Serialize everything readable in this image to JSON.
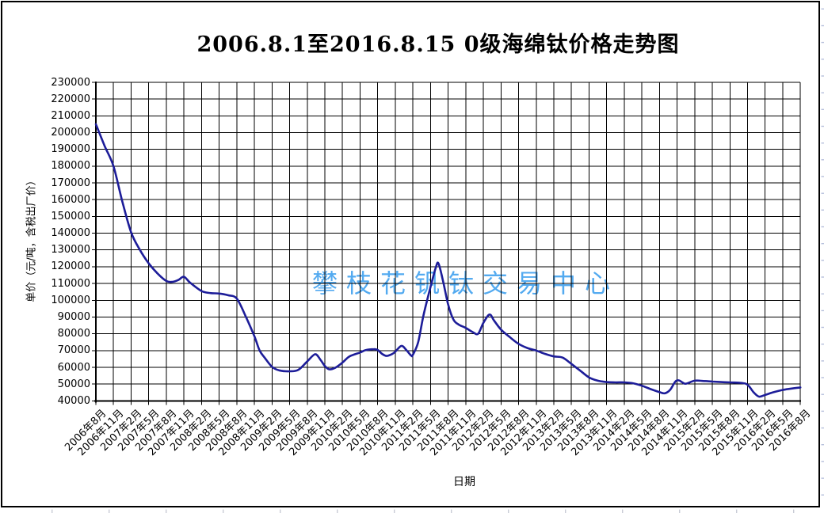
{
  "chart_data": {
    "type": "line",
    "title": "2006.8.1至2016.8.15  0级海绵钛价格走势图",
    "xlabel": "日期",
    "ylabel": "单价（元/吨，含税出厂价）",
    "watermark": "攀枝花钒钛交易中心",
    "ylim": [
      40000,
      230000
    ],
    "ytick_interval": 10000,
    "grid": true,
    "legend": false,
    "y_ticks": [
      230000,
      220000,
      210000,
      200000,
      190000,
      180000,
      170000,
      160000,
      150000,
      140000,
      130000,
      120000,
      110000,
      100000,
      90000,
      80000,
      70000,
      60000,
      50000,
      40000
    ],
    "categories": [
      "2006年8月",
      "2006年11月",
      "2007年2月",
      "2007年5月",
      "2007年8月",
      "2007年11月",
      "2008年2月",
      "2008年5月",
      "2008年8月",
      "2008年11月",
      "2009年2月",
      "2009年5月",
      "2009年8月",
      "2009年11月",
      "2010年2月",
      "2010年5月",
      "2010年8月",
      "2010年11月",
      "2011年2月",
      "2011年5月",
      "2011年8月",
      "2011年11月",
      "2012年2月",
      "2012年5月",
      "2012年8月",
      "2012年11月",
      "2013年2月",
      "2013年5月",
      "2013年8月",
      "2013年11月",
      "2014年2月",
      "2014年5月",
      "2014年8月",
      "2014年11月",
      "2015年2月",
      "2015年5月",
      "2015年8月",
      "2015年11月",
      "2016年2月",
      "2016年5月",
      "2016年8月"
    ],
    "points_note": "points are [tick_index, price_yuan_per_ton]; tick_index 0 = 2006年8月, 1 tick = 3 months",
    "series": [
      {
        "points": [
          [
            0,
            205000
          ],
          [
            0.5,
            192000
          ],
          [
            1,
            180000
          ],
          [
            1.5,
            159000
          ],
          [
            2,
            140500
          ],
          [
            2.5,
            130000
          ],
          [
            3,
            122000
          ],
          [
            3.5,
            116000
          ],
          [
            4,
            111500
          ],
          [
            4.35,
            111000
          ],
          [
            4.7,
            112200
          ],
          [
            5,
            114000
          ],
          [
            5.35,
            110500
          ],
          [
            6,
            105500
          ],
          [
            6.5,
            104300
          ],
          [
            7,
            104000
          ],
          [
            7.5,
            103000
          ],
          [
            8,
            101000
          ],
          [
            8.5,
            90500
          ],
          [
            9,
            78500
          ],
          [
            9.3,
            70000
          ],
          [
            9.6,
            65500
          ],
          [
            10,
            60300
          ],
          [
            10.4,
            58200
          ],
          [
            11,
            57600
          ],
          [
            11.5,
            58500
          ],
          [
            12,
            63500
          ],
          [
            12.45,
            67800
          ],
          [
            12.75,
            64500
          ],
          [
            13,
            60800
          ],
          [
            13.25,
            58800
          ],
          [
            13.6,
            59800
          ],
          [
            14,
            62800
          ],
          [
            14.4,
            66500
          ],
          [
            15,
            68800
          ],
          [
            15.3,
            70200
          ],
          [
            15.8,
            70800
          ],
          [
            16,
            70300
          ],
          [
            16.25,
            68000
          ],
          [
            16.5,
            66800
          ],
          [
            16.8,
            67800
          ],
          [
            17,
            69300
          ],
          [
            17.35,
            72800
          ],
          [
            17.65,
            70000
          ],
          [
            17.9,
            67000
          ],
          [
            18,
            67500
          ],
          [
            18.3,
            75000
          ],
          [
            18.6,
            91000
          ],
          [
            19,
            108000
          ],
          [
            19.3,
            119500
          ],
          [
            19.45,
            122000
          ],
          [
            19.7,
            112000
          ],
          [
            20,
            97500
          ],
          [
            20.3,
            88500
          ],
          [
            20.6,
            85500
          ],
          [
            21,
            83500
          ],
          [
            21.4,
            81000
          ],
          [
            21.7,
            80000
          ],
          [
            22,
            86500
          ],
          [
            22.35,
            91500
          ],
          [
            22.6,
            88000
          ],
          [
            23,
            82500
          ],
          [
            23.5,
            78000
          ],
          [
            24,
            74000
          ],
          [
            24.5,
            71500
          ],
          [
            25,
            70000
          ],
          [
            25.5,
            68000
          ],
          [
            26,
            66500
          ],
          [
            26.5,
            65800
          ],
          [
            27,
            62000
          ],
          [
            27.5,
            58000
          ],
          [
            28,
            54000
          ],
          [
            28.5,
            52000
          ],
          [
            29,
            51200
          ],
          [
            29.5,
            51000
          ],
          [
            30,
            51000
          ],
          [
            30.5,
            50500
          ],
          [
            31,
            49000
          ],
          [
            31.5,
            47000
          ],
          [
            32,
            45200
          ],
          [
            32.3,
            44500
          ],
          [
            32.6,
            46500
          ],
          [
            32.9,
            51500
          ],
          [
            33.1,
            52200
          ],
          [
            33.3,
            51000
          ],
          [
            33.5,
            50200
          ],
          [
            34,
            52000
          ],
          [
            34.5,
            51800
          ],
          [
            35,
            51500
          ],
          [
            35.5,
            51200
          ],
          [
            36,
            51000
          ],
          [
            36.5,
            50800
          ],
          [
            36.9,
            50200
          ],
          [
            37.1,
            48500
          ],
          [
            37.35,
            45000
          ],
          [
            37.65,
            42500
          ],
          [
            38,
            43500
          ],
          [
            38.5,
            45200
          ],
          [
            39,
            46500
          ],
          [
            39.5,
            47300
          ],
          [
            40,
            48000
          ]
        ]
      }
    ]
  },
  "colors": {
    "line": "#1d1d99",
    "grid": "#000000",
    "axis": "#000000",
    "watermark": "#53aaf0",
    "background": "#ffffff",
    "border": "#000000",
    "sheet_mark_right": "#b7c0dc",
    "sheet_mark_bottom": "#c9ccd6"
  }
}
